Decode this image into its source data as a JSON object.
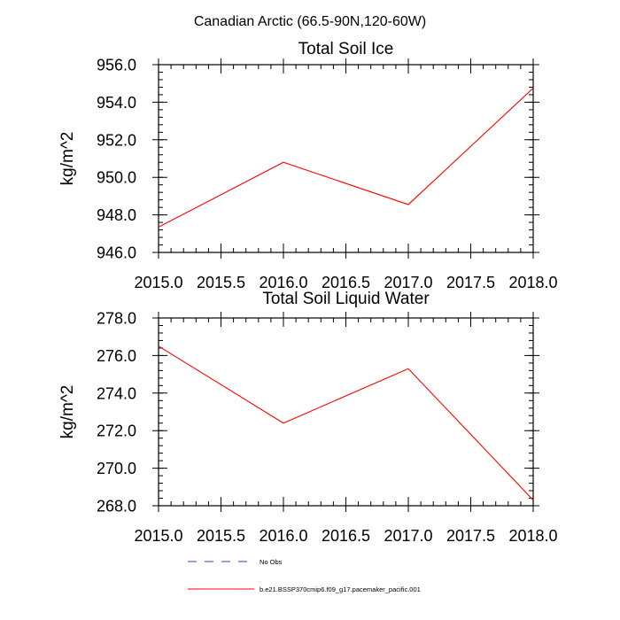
{
  "figure": {
    "suptitle": "Canadian Arctic (66.5-90N,120-60W)"
  },
  "chart_data": [
    {
      "type": "line",
      "title": "Total Soil Ice",
      "xlabel": "",
      "ylabel": "kg/m^2",
      "xlim": [
        2015.0,
        2018.0
      ],
      "ylim": [
        946.0,
        956.0
      ],
      "xticks": [
        2015.0,
        2015.5,
        2016.0,
        2016.5,
        2017.0,
        2017.5,
        2018.0
      ],
      "xtick_labels": [
        "2015.0",
        "2015.5",
        "2016.0",
        "2016.5",
        "2017.0",
        "2017.5",
        "2018.0"
      ],
      "yticks": [
        946.0,
        948.0,
        950.0,
        952.0,
        954.0,
        956.0
      ],
      "ytick_labels": [
        "946.0",
        "948.0",
        "950.0",
        "952.0",
        "954.0",
        "956.0"
      ],
      "grid": false,
      "series": [
        {
          "name": "b.e21.BSSP370cmip6.f09_g17.pacemaker_pacific.001",
          "color": "#ff0000",
          "x": [
            2015.0,
            2016.0,
            2017.0,
            2018.0
          ],
          "y": [
            947.35,
            950.8,
            948.55,
            954.75
          ]
        }
      ]
    },
    {
      "type": "line",
      "title": "Total Soil Liquid Water",
      "xlabel": "",
      "ylabel": "kg/m^2",
      "xlim": [
        2015.0,
        2018.0
      ],
      "ylim": [
        268.0,
        278.0
      ],
      "xticks": [
        2015.0,
        2015.5,
        2016.0,
        2016.5,
        2017.0,
        2017.5,
        2018.0
      ],
      "xtick_labels": [
        "2015.0",
        "2015.5",
        "2016.0",
        "2016.5",
        "2017.0",
        "2017.5",
        "2018.0"
      ],
      "yticks": [
        268.0,
        270.0,
        272.0,
        274.0,
        276.0,
        278.0
      ],
      "ytick_labels": [
        "268.0",
        "270.0",
        "272.0",
        "274.0",
        "276.0",
        "278.0"
      ],
      "grid": false,
      "series": [
        {
          "name": "b.e21.BSSP370cmip6.f09_g17.pacemaker_pacific.001",
          "color": "#ff0000",
          "x": [
            2015.0,
            2016.0,
            2017.0,
            2018.0
          ],
          "y": [
            276.5,
            272.4,
            275.3,
            268.3
          ]
        }
      ]
    }
  ],
  "legend": {
    "placement": "bottom-center",
    "entries": [
      {
        "label": "No Obs",
        "color": "#3c3cb4",
        "style": "dashed"
      },
      {
        "label": "b.e21.BSSP370cmip6.f09_g17.pacemaker_pacific.001",
        "color": "#ff0000",
        "style": "solid"
      }
    ]
  }
}
